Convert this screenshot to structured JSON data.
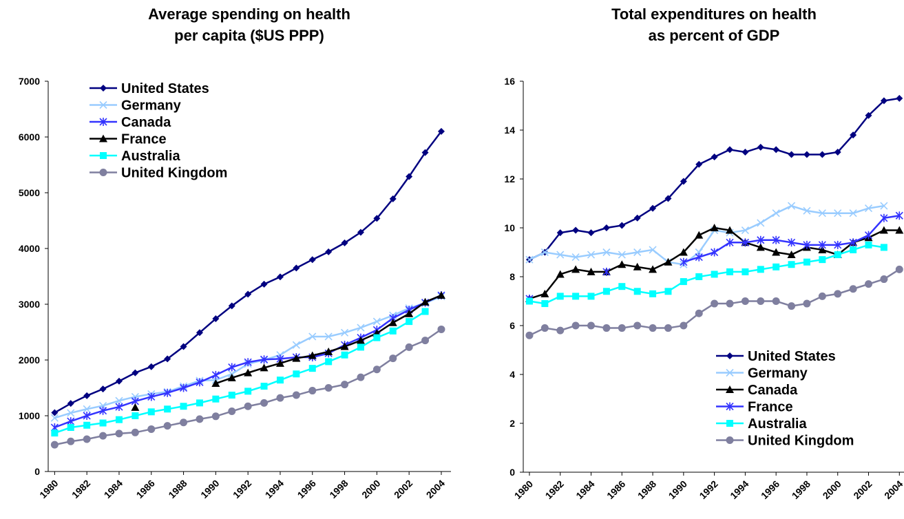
{
  "chart_data": [
    {
      "type": "line",
      "title": "Average spending on health",
      "subtitle": "per capita ($US PPP)",
      "x": [
        1980,
        1981,
        1982,
        1983,
        1984,
        1985,
        1986,
        1987,
        1988,
        1989,
        1990,
        1991,
        1992,
        1993,
        1994,
        1995,
        1996,
        1997,
        1998,
        1999,
        2000,
        2001,
        2002,
        2003,
        2004
      ],
      "xlim": [
        1979.6,
        2004.6
      ],
      "xticks": [
        1980,
        1982,
        1984,
        1986,
        1988,
        1990,
        1992,
        1994,
        1996,
        1998,
        2000,
        2002,
        2004
      ],
      "ylim": [
        0,
        7000
      ],
      "yticks": [
        0,
        1000,
        2000,
        3000,
        4000,
        5000,
        6000,
        7000
      ],
      "legend": "upper left",
      "series": [
        {
          "name": "United States",
          "color": "#000080",
          "marker": "diamond",
          "values": [
            1055,
            1220,
            1360,
            1480,
            1620,
            1770,
            1880,
            2020,
            2240,
            2490,
            2740,
            2970,
            3180,
            3360,
            3490,
            3650,
            3800,
            3940,
            4100,
            4290,
            4540,
            4890,
            5290,
            5720,
            6100
          ]
        },
        {
          "name": "Germany",
          "color": "#99ccff",
          "marker": "x",
          "values": [
            960,
            1050,
            1120,
            1180,
            1270,
            1340,
            1390,
            1430,
            1530,
            1630,
            1640,
            1750,
            1930,
            2000,
            2090,
            2270,
            2420,
            2420,
            2490,
            2580,
            2690,
            2800,
            2930,
            3020,
            3140
          ]
        },
        {
          "name": "Canada",
          "color": "#3333ff",
          "marker": "star",
          "values": [
            790,
            900,
            1000,
            1090,
            1160,
            1260,
            1340,
            1410,
            1500,
            1600,
            1730,
            1870,
            1960,
            2010,
            2020,
            2050,
            2050,
            2120,
            2270,
            2400,
            2540,
            2750,
            2900,
            3030,
            3160
          ]
        },
        {
          "name": "France",
          "color": "#000000",
          "marker": "triangle",
          "values": [
            null,
            null,
            null,
            null,
            null,
            1150,
            null,
            null,
            null,
            null,
            1580,
            1680,
            1770,
            1860,
            1940,
            2030,
            2080,
            2150,
            2240,
            2350,
            2480,
            2670,
            2830,
            3040,
            3160
          ]
        },
        {
          "name": "Australia",
          "color": "#00ffff",
          "marker": "square",
          "values": [
            690,
            790,
            830,
            870,
            930,
            1000,
            1070,
            1120,
            1170,
            1230,
            1300,
            1370,
            1440,
            1530,
            1640,
            1750,
            1850,
            1970,
            2090,
            2230,
            2400,
            2520,
            2690,
            2870,
            null
          ]
        },
        {
          "name": "United Kingdom",
          "color": "#7f7f9f",
          "marker": "circle",
          "values": [
            480,
            540,
            580,
            640,
            680,
            700,
            760,
            820,
            880,
            940,
            990,
            1080,
            1170,
            1230,
            1320,
            1370,
            1450,
            1500,
            1560,
            1690,
            1830,
            2030,
            2230,
            2350,
            2550
          ]
        }
      ]
    },
    {
      "type": "line",
      "title": "Total expenditures on health",
      "subtitle": "as percent of GDP",
      "x": [
        1980,
        1981,
        1982,
        1983,
        1984,
        1985,
        1986,
        1987,
        1988,
        1989,
        1990,
        1991,
        1992,
        1993,
        1994,
        1995,
        1996,
        1997,
        1998,
        1999,
        2000,
        2001,
        2002,
        2003,
        2004
      ],
      "xlim": [
        1979.6,
        2004.3
      ],
      "xticks": [
        1980,
        1982,
        1984,
        1986,
        1988,
        1990,
        1992,
        1994,
        1996,
        1998,
        2000,
        2002,
        2004
      ],
      "ylim": [
        0,
        16
      ],
      "yticks": [
        0,
        2,
        4,
        6,
        8,
        10,
        12,
        14,
        16
      ],
      "legend": "lower right",
      "series": [
        {
          "name": "United States",
          "color": "#000080",
          "marker": "diamond",
          "values": [
            8.7,
            9.0,
            9.8,
            9.9,
            9.8,
            10.0,
            10.1,
            10.4,
            10.8,
            11.2,
            11.9,
            12.6,
            12.9,
            13.2,
            13.1,
            13.3,
            13.2,
            13.0,
            13.0,
            13.0,
            13.1,
            13.8,
            14.6,
            15.2,
            15.3
          ]
        },
        {
          "name": "Germany",
          "color": "#99ccff",
          "marker": "x",
          "values": [
            8.7,
            9.0,
            8.9,
            8.8,
            8.9,
            9.0,
            8.9,
            9.0,
            9.1,
            8.6,
            8.5,
            9.0,
            9.9,
            9.8,
            9.9,
            10.2,
            10.6,
            10.9,
            10.7,
            10.6,
            10.6,
            10.6,
            10.8,
            10.9,
            null
          ]
        },
        {
          "name": "Canada",
          "color": "#000000",
          "marker": "triangle",
          "values": [
            7.1,
            7.3,
            8.1,
            8.3,
            8.2,
            8.2,
            8.5,
            8.4,
            8.3,
            8.6,
            9.0,
            9.7,
            10.0,
            9.9,
            9.4,
            9.2,
            9.0,
            8.9,
            9.2,
            9.1,
            8.9,
            9.4,
            9.6,
            9.9,
            9.9
          ]
        },
        {
          "name": "France",
          "color": "#3333ff",
          "marker": "star",
          "values": [
            7.1,
            null,
            null,
            null,
            null,
            8.2,
            null,
            null,
            null,
            null,
            8.6,
            8.8,
            9.0,
            9.4,
            9.4,
            9.5,
            9.5,
            9.4,
            9.3,
            9.3,
            9.3,
            9.4,
            9.7,
            10.4,
            10.5
          ]
        },
        {
          "name": "Australia",
          "color": "#00ffff",
          "marker": "square",
          "values": [
            7.0,
            6.9,
            7.2,
            7.2,
            7.2,
            7.4,
            7.6,
            7.4,
            7.3,
            7.4,
            7.8,
            8.0,
            8.1,
            8.2,
            8.2,
            8.3,
            8.4,
            8.5,
            8.6,
            8.7,
            8.9,
            9.1,
            9.3,
            9.2,
            null
          ]
        },
        {
          "name": "United Kingdom",
          "color": "#7f7f9f",
          "marker": "circle",
          "values": [
            5.6,
            5.9,
            5.8,
            6.0,
            6.0,
            5.9,
            5.9,
            6.0,
            5.9,
            5.9,
            6.0,
            6.5,
            6.9,
            6.9,
            7.0,
            7.0,
            7.0,
            6.8,
            6.9,
            7.2,
            7.3,
            7.5,
            7.7,
            7.9,
            8.3
          ]
        }
      ]
    }
  ]
}
